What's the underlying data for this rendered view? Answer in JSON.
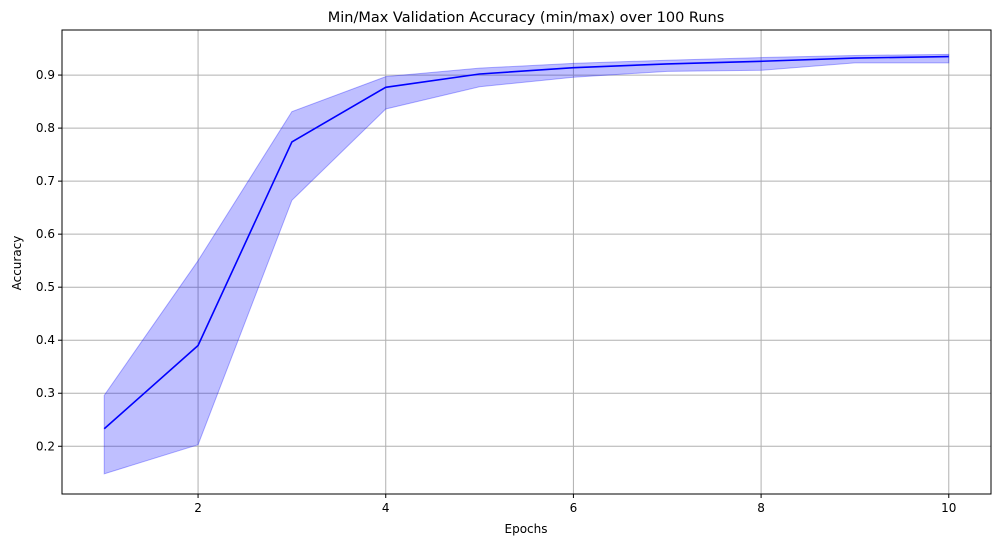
{
  "chart_data": {
    "type": "line",
    "title": "Min/Max Validation Accuracy (min/max) over 100 Runs",
    "xlabel": "Epochs",
    "ylabel": "Accuracy",
    "xlim": [
      0.55,
      10.45
    ],
    "ylim": [
      0.11,
      0.985
    ],
    "x_ticks": [
      2,
      4,
      6,
      8,
      10
    ],
    "y_ticks": [
      0.2,
      0.3,
      0.4,
      0.5,
      0.6,
      0.7,
      0.8,
      0.9
    ],
    "grid": true,
    "x": [
      1,
      2,
      3,
      4,
      5,
      6,
      7,
      8,
      9,
      10
    ],
    "series": [
      {
        "values": [
          0.233,
          0.39,
          0.774,
          0.877,
          0.902,
          0.914,
          0.921,
          0.926,
          0.932,
          0.935
        ],
        "min": [
          0.148,
          0.203,
          0.664,
          0.836,
          0.878,
          0.896,
          0.907,
          0.909,
          0.923,
          0.923
        ],
        "max": [
          0.296,
          0.55,
          0.831,
          0.897,
          0.913,
          0.922,
          0.928,
          0.933,
          0.937,
          0.939
        ]
      }
    ],
    "colors": {
      "line": "#0000ff",
      "band": "#0000ff",
      "grid": "#b0b0b0"
    }
  }
}
